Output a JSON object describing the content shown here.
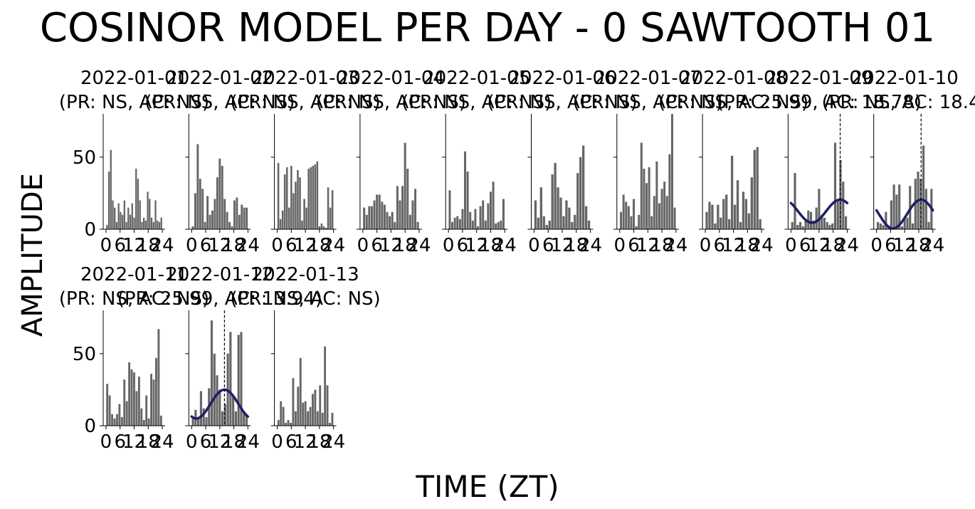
{
  "title": "COSINOR MODEL PER DAY - 0 SAWTOOTH 01",
  "chart_data": {
    "type": "bar",
    "xlabel": "TIME (ZT)",
    "ylabel": "AMPLITUDE",
    "ylim": [
      0,
      80
    ],
    "yticks": [
      0,
      50
    ],
    "xticks": [
      "0",
      "6",
      "12",
      "18",
      "24"
    ],
    "grid": false,
    "bar_color": "#666666",
    "fit_color": "#1f1f66",
    "panels": [
      {
        "title": "2022-01-01",
        "subtitle": "(PR: NS, AC: NS)",
        "values": [
          3,
          40,
          55,
          20,
          15,
          5,
          18,
          12,
          10,
          20,
          5,
          15,
          10,
          18,
          8,
          42,
          35,
          20,
          5,
          8,
          6,
          26,
          21,
          8,
          5,
          20,
          6,
          5,
          8
        ]
      },
      {
        "title": "2022-01-02",
        "subtitle": "(PR: NS, AC: NS)",
        "values": [
          2,
          25,
          59,
          35,
          28,
          5,
          23,
          10,
          13,
          21,
          36,
          49,
          44,
          21,
          12,
          5,
          2,
          20,
          22,
          10,
          17,
          15,
          15
        ]
      },
      {
        "title": "2022-01-03",
        "subtitle": "(PR: NS, AC: NS)",
        "values": [
          46,
          7,
          13,
          38,
          43,
          15,
          44,
          25,
          33,
          41,
          36,
          6,
          21,
          15,
          42,
          43,
          44,
          45,
          47,
          2,
          4,
          2,
          1,
          29,
          15,
          27
        ]
      },
      {
        "title": "2022-01-04",
        "subtitle": "(PR: NS, AC: NS)",
        "values": [
          15,
          10,
          16,
          16,
          20,
          24,
          24,
          19,
          17,
          12,
          9,
          12,
          5,
          30,
          20,
          30,
          60,
          42,
          10,
          20,
          28,
          5
        ]
      },
      {
        "title": "2022-01-05",
        "subtitle": "(PR: NS, AC: NS)",
        "values": [
          27,
          5,
          8,
          9,
          7,
          14,
          54,
          40,
          12,
          6,
          14,
          2,
          16,
          20,
          6,
          18,
          26,
          33,
          4,
          5,
          6,
          21
        ]
      },
      {
        "title": "2022-01-06",
        "subtitle": "(PR: NS, AC: NS)",
        "values": [
          20,
          8,
          29,
          9,
          3,
          6,
          38,
          46,
          29,
          22,
          9,
          20,
          15,
          5,
          10,
          39,
          50,
          58,
          16,
          6
        ]
      },
      {
        "title": "2022-01-07",
        "subtitle": "(PR: NS, AC: NS)",
        "values": [
          12,
          24,
          19,
          16,
          9,
          21,
          2,
          10,
          60,
          42,
          32,
          43,
          9,
          23,
          47,
          18,
          28,
          33,
          23,
          52,
          80,
          15
        ]
      },
      {
        "title": "2022-01-08",
        "subtitle": "(PR: NS, AC: NS)",
        "values": [
          12,
          19,
          17,
          4,
          17,
          8,
          21,
          24,
          7,
          51,
          17,
          34,
          5,
          26,
          21,
          11,
          36,
          55,
          57,
          7
        ]
      },
      {
        "title": "2022-01-09",
        "subtitle": "(PR: 25.99, AC: 18.78)",
        "values": [
          5,
          39,
          3,
          5,
          2,
          6,
          13,
          12,
          6,
          15,
          28,
          10,
          8,
          5,
          3,
          4,
          60,
          20,
          48,
          33,
          9
        ],
        "fit": {
          "mesor": 12.5,
          "amplitude": 8,
          "acrophase": 21
        }
      },
      {
        "title": "2022-01-10",
        "subtitle": "(PR: NS, AC: 18.4)",
        "values": [
          5,
          4,
          3,
          12,
          2,
          20,
          31,
          24,
          31,
          2,
          8,
          8,
          30,
          4,
          35,
          40,
          35,
          58,
          28,
          5,
          28
        ],
        "fit": {
          "mesor": 10.5,
          "amplitude": 10,
          "acrophase": 19
        }
      },
      {
        "title": "2022-01-11",
        "subtitle": "(PR: NS, AC: NS)",
        "values": [
          29,
          21,
          8,
          5,
          8,
          15,
          6,
          32,
          17,
          44,
          39,
          37,
          24,
          34,
          12,
          4,
          21,
          5,
          36,
          32,
          47,
          67,
          7
        ]
      },
      {
        "title": "2022-01-12",
        "subtitle": "(PR: 25.99, AC: 13.94)",
        "values": [
          5,
          11,
          5,
          24,
          12,
          6,
          26,
          73,
          50,
          35,
          25,
          10,
          15,
          50,
          65,
          20,
          10,
          63,
          65,
          10,
          8
        ],
        "fit": {
          "mesor": 15,
          "amplitude": 10,
          "acrophase": 14
        }
      },
      {
        "title": "2022-01-13",
        "subtitle": "(PR: NS, AC: NS)",
        "values": [
          4,
          17,
          13,
          2,
          4,
          2,
          33,
          10,
          27,
          47,
          16,
          17,
          10,
          13,
          22,
          25,
          10,
          28,
          9,
          55,
          28,
          2,
          9
        ]
      }
    ]
  }
}
